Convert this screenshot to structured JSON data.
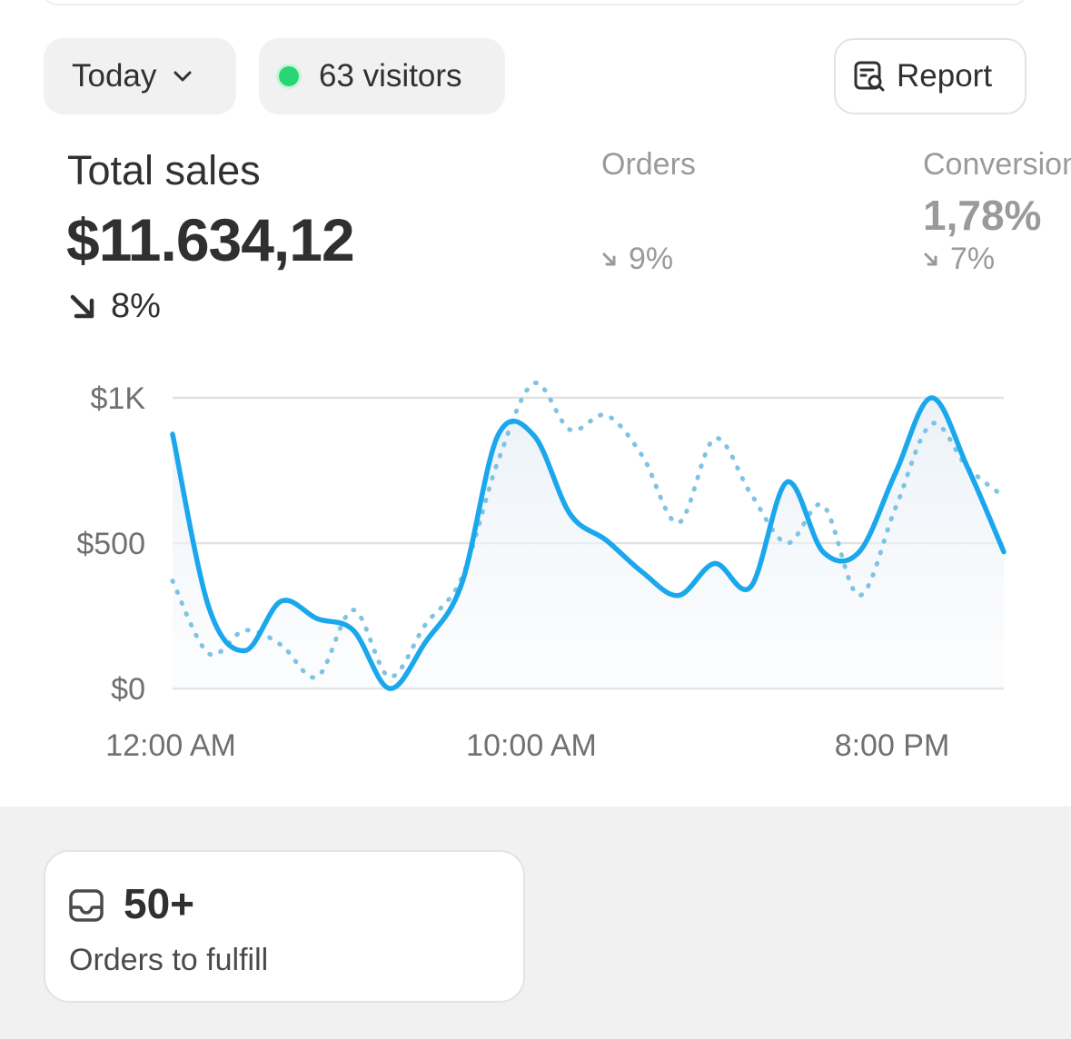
{
  "filters": {
    "date_label": "Today",
    "visitors_label": "63 visitors",
    "report_label": "Report"
  },
  "metrics": {
    "total_sales": {
      "label": "Total sales",
      "value": "$11.634,12",
      "delta": "8%"
    },
    "orders": {
      "label": "Orders",
      "delta": "9%"
    },
    "conversion": {
      "label": "Conversion",
      "value": "1,78%",
      "delta": "7%"
    }
  },
  "colors": {
    "accent": "#1aa7ec",
    "comparison": "#7fc3e3",
    "live_dot": "#29d675"
  },
  "chart_data": {
    "type": "line",
    "x_ticks": [
      "12:00 AM",
      "10:00 AM",
      "8:00 PM"
    ],
    "y_ticks": [
      "$0",
      "$500",
      "$1K"
    ],
    "ylim": [
      0,
      1000
    ],
    "grid": true,
    "x": [
      "12:00 AM",
      "1:00 AM",
      "2:00 AM",
      "3:00 AM",
      "4:00 AM",
      "5:00 AM",
      "6:00 AM",
      "7:00 AM",
      "8:00 AM",
      "9:00 AM",
      "10:00 AM",
      "11:00 AM",
      "12:00 PM",
      "1:00 PM",
      "2:00 PM",
      "3:00 PM",
      "4:00 PM",
      "5:00 PM",
      "6:00 PM",
      "7:00 PM",
      "8:00 PM",
      "9:00 PM",
      "10:00 PM",
      "11:00 PM"
    ],
    "series": [
      {
        "values": [
          875,
          280,
          130,
          300,
          240,
          200,
          0,
          160,
          360,
          870,
          870,
          600,
          510,
          400,
          320,
          430,
          350,
          710,
          470,
          470,
          740,
          1000,
          760,
          470
        ]
      },
      {
        "values": [
          370,
          120,
          200,
          150,
          40,
          270,
          40,
          220,
          380,
          780,
          1050,
          890,
          940,
          800,
          570,
          860,
          670,
          500,
          630,
          320,
          620,
          910,
          760,
          660
        ]
      }
    ]
  },
  "fulfill": {
    "count": "50+",
    "label": "Orders to fulfill"
  }
}
